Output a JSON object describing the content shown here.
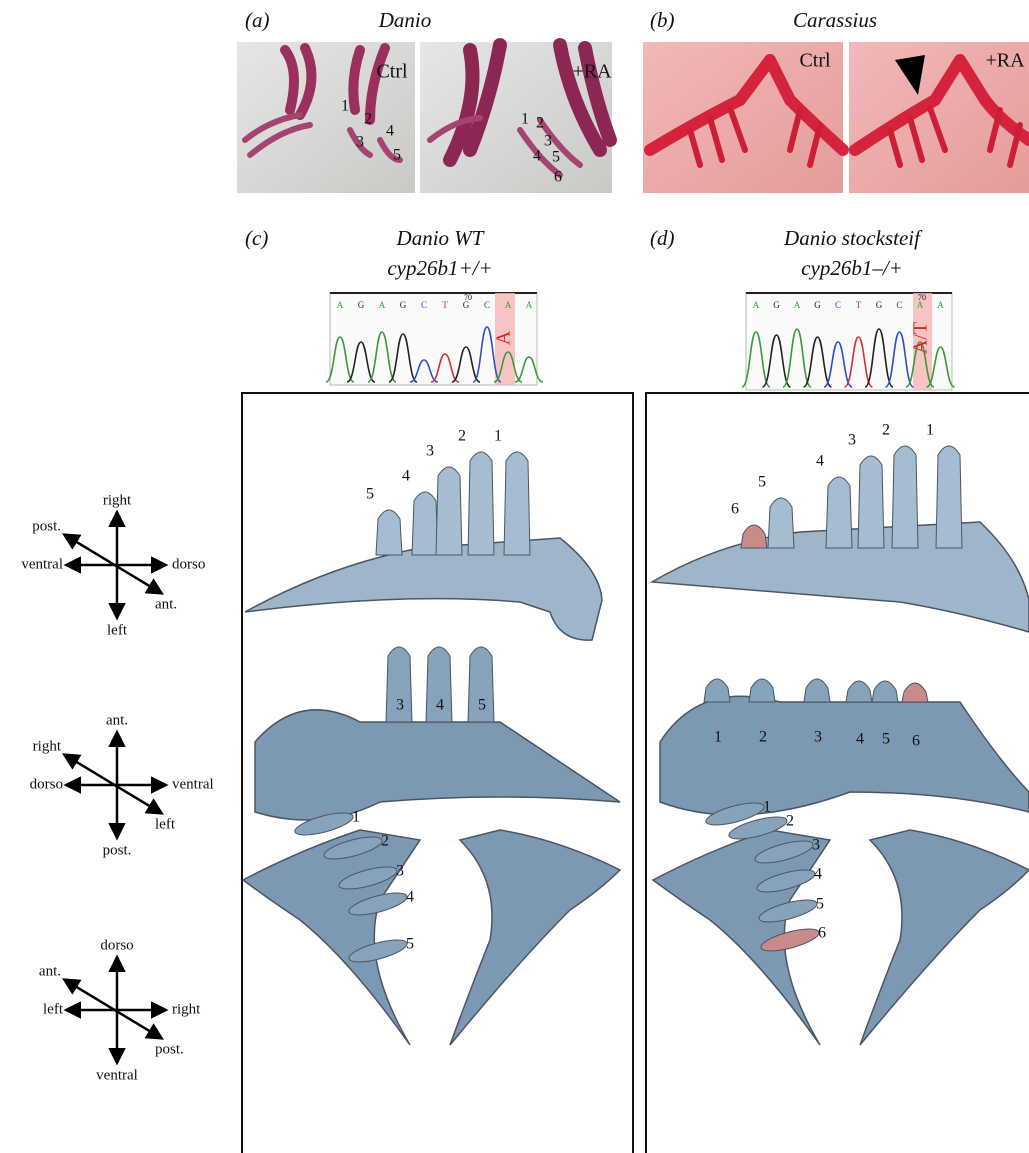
{
  "panels": [
    {
      "label": "(a)",
      "title": "Danio",
      "photos": [
        {
          "tag": "Ctrl",
          "teeth": [
            1,
            2,
            3,
            4,
            5
          ]
        },
        {
          "tag": "+RA",
          "teeth": [
            1,
            2,
            3,
            4,
            5,
            6
          ]
        }
      ]
    },
    {
      "label": "(b)",
      "title": "Carassius",
      "photos": [
        {
          "tag": "Ctrl"
        },
        {
          "tag": "+RA"
        }
      ]
    },
    {
      "label": "(c)",
      "title": "Danio WT",
      "genotype": "cyp26b1+/+",
      "chromatogram": {
        "bases": [
          "A",
          "G",
          "A",
          "G",
          "C",
          "T",
          "G",
          "C",
          "A",
          "A"
        ],
        "base_colors": [
          "#3a9a3a",
          "#222222",
          "#3a9a3a",
          "#222222",
          "#2a4fd0",
          "#d03030",
          "#222222",
          "#2a4fd0",
          "#3a9a3a",
          "#3a9a3a"
        ],
        "position": 70,
        "call": "A"
      },
      "views": [
        {
          "teeth": [
            5,
            4,
            3,
            2,
            1
          ]
        },
        {
          "teeth": [
            3,
            4,
            5
          ]
        },
        {
          "teeth": [
            1,
            2,
            3,
            4,
            5
          ]
        }
      ]
    },
    {
      "label": "(d)",
      "title": "Danio stocksteif",
      "genotype": "cyp26b1–/+",
      "chromatogram": {
        "bases": [
          "A",
          "G",
          "A",
          "G",
          "C",
          "T",
          "G",
          "C",
          "A",
          "A"
        ],
        "base_colors": [
          "#3a9a3a",
          "#222222",
          "#3a9a3a",
          "#222222",
          "#2a4fd0",
          "#d03030",
          "#222222",
          "#2a4fd0",
          "#3a9a3a",
          "#3a9a3a"
        ],
        "position": 70,
        "call": "A/T"
      },
      "views": [
        {
          "teeth": [
            6,
            5,
            4,
            3,
            2,
            1
          ]
        },
        {
          "teeth": [
            1,
            2,
            3,
            4,
            5,
            6
          ]
        },
        {
          "teeth": [
            1,
            2,
            3,
            4,
            5,
            6
          ]
        }
      ]
    }
  ],
  "orientations": [
    {
      "up": "right",
      "down": "left",
      "left": "ventral",
      "right": "dorso",
      "diag_start": "post.",
      "diag_end": "ant."
    },
    {
      "up": "ant.",
      "down": "post.",
      "left": "dorso",
      "right": "ventral",
      "diag_start": "right",
      "diag_end": "left"
    },
    {
      "up": "dorso",
      "down": "ventral",
      "left": "left",
      "right": "right",
      "diag_start": "ant.",
      "diag_end": "post."
    }
  ]
}
